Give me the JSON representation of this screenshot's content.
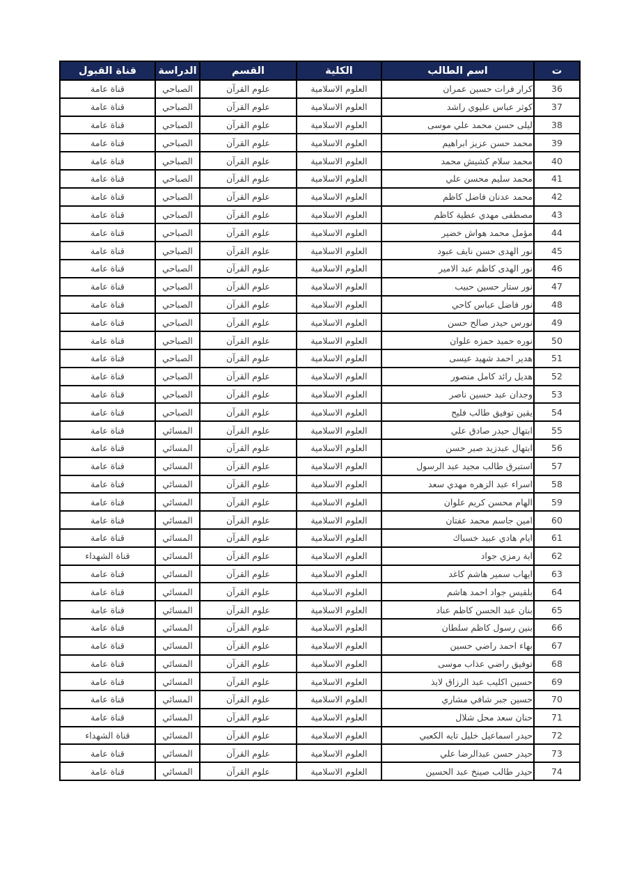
{
  "colors": {
    "header_bg": "#19285a",
    "header_text": "#ffffff",
    "border": "#000000",
    "body_text": "#3d3d3d",
    "page_bg": "#ffffff"
  },
  "table": {
    "headers": {
      "no": "ت",
      "name": "اسم الطالب",
      "college": "الكلية",
      "department": "القسم",
      "study": "الدراسة",
      "channel": "قناة القبول"
    },
    "column_keys": [
      "no",
      "name",
      "college",
      "department",
      "study",
      "channel"
    ],
    "rows": [
      {
        "no": "36",
        "name": "كرار فرات حسين عمران",
        "college": "العلوم الاسلامية",
        "department": "علوم القرآن",
        "study": "الصباحي",
        "channel": "قناة عامة"
      },
      {
        "no": "37",
        "name": "كوثر عباس عليوي راشد",
        "college": "العلوم الاسلامية",
        "department": "علوم القرآن",
        "study": "الصباحي",
        "channel": "قناة عامة"
      },
      {
        "no": "38",
        "name": "ليلى حسن محمد علي موسى",
        "college": "العلوم الاسلامية",
        "department": "علوم القرآن",
        "study": "الصباحي",
        "channel": "قناة عامة"
      },
      {
        "no": "39",
        "name": "محمد حسن عزيز ابراهيم",
        "college": "العلوم الاسلامية",
        "department": "علوم القرآن",
        "study": "الصباحي",
        "channel": "قناة عامة"
      },
      {
        "no": "40",
        "name": "محمد سلام كشيش محمد",
        "college": "العلوم الاسلامية",
        "department": "علوم القرآن",
        "study": "الصباحي",
        "channel": "قناة عامة"
      },
      {
        "no": "41",
        "name": "محمد سليم محسن علي",
        "college": "العلوم الاسلامية",
        "department": "علوم القرآن",
        "study": "الصباحي",
        "channel": "قناة عامة"
      },
      {
        "no": "42",
        "name": "محمد عدنان فاضل كاظم",
        "college": "العلوم الاسلامية",
        "department": "علوم القرآن",
        "study": "الصباحي",
        "channel": "قناة عامة"
      },
      {
        "no": "43",
        "name": "مصطفى مهدي عطية كاظم",
        "college": "العلوم الاسلامية",
        "department": "علوم القرآن",
        "study": "الصباحي",
        "channel": "قناة عامة"
      },
      {
        "no": "44",
        "name": "مؤمل محمد هواش خضير",
        "college": "العلوم الاسلامية",
        "department": "علوم القرآن",
        "study": "الصباحي",
        "channel": "قناة عامة"
      },
      {
        "no": "45",
        "name": "نور الهدى حسن نايف عبود",
        "college": "العلوم الاسلامية",
        "department": "علوم القرآن",
        "study": "الصباحي",
        "channel": "قناة عامة"
      },
      {
        "no": "46",
        "name": "نور الهدى كاظم عبد الامير",
        "college": "العلوم الاسلامية",
        "department": "علوم القرآن",
        "study": "الصباحي",
        "channel": "قناة عامة"
      },
      {
        "no": "47",
        "name": "نور ستار حسين حبيب",
        "college": "العلوم الاسلامية",
        "department": "علوم القرآن",
        "study": "الصباحي",
        "channel": "قناة عامة"
      },
      {
        "no": "48",
        "name": "نور فاضل عباس كاحي",
        "college": "العلوم الاسلامية",
        "department": "علوم القرآن",
        "study": "الصباحي",
        "channel": "قناة عامة"
      },
      {
        "no": "49",
        "name": "نورس حيدر صالح حسن",
        "college": "العلوم الاسلامية",
        "department": "علوم القرآن",
        "study": "الصباحي",
        "channel": "قناة عامة"
      },
      {
        "no": "50",
        "name": "نوره حميد حمزه علوان",
        "college": "العلوم الاسلامية",
        "department": "علوم القرآن",
        "study": "الصباحي",
        "channel": "قناة عامة"
      },
      {
        "no": "51",
        "name": "هدير احمد شهيد عيسى",
        "college": "العلوم الاسلامية",
        "department": "علوم القرآن",
        "study": "الصباحي",
        "channel": "قناة عامة"
      },
      {
        "no": "52",
        "name": "هديل رائد كامل منصور",
        "college": "العلوم الاسلامية",
        "department": "علوم القرآن",
        "study": "الصباحي",
        "channel": "قناة عامة"
      },
      {
        "no": "53",
        "name": "وجدان عبد حسين ناصر",
        "college": "العلوم الاسلامية",
        "department": "علوم القرآن",
        "study": "الصباحي",
        "channel": "قناة عامة"
      },
      {
        "no": "54",
        "name": "يقين توفيق طالب فليح",
        "college": "العلوم الاسلامية",
        "department": "علوم القرآن",
        "study": "الصباحي",
        "channel": "قناة عامة"
      },
      {
        "no": "55",
        "name": "ابتهال حيدر صادق علي",
        "college": "العلوم الاسلامية",
        "department": "علوم القرآن",
        "study": "المسائي",
        "channel": "قناة عامة"
      },
      {
        "no": "56",
        "name": "ابتهال عبدزيد صبر حسن",
        "college": "العلوم الاسلامية",
        "department": "علوم القرآن",
        "study": "المسائي",
        "channel": "قناة عامة"
      },
      {
        "no": "57",
        "name": "استبرق طالب مجيد عبد الرسول",
        "college": "العلوم الاسلامية",
        "department": "علوم القرآن",
        "study": "المسائي",
        "channel": "قناة عامة"
      },
      {
        "no": "58",
        "name": "اسراء عبد الزهره مهدي سعد",
        "college": "العلوم الاسلامية",
        "department": "علوم القرآن",
        "study": "المسائي",
        "channel": "قناة عامة"
      },
      {
        "no": "59",
        "name": "الهام محسن كريم علوان",
        "college": "العلوم الاسلامية",
        "department": "علوم القرآن",
        "study": "المسائي",
        "channel": "قناة عامة"
      },
      {
        "no": "60",
        "name": "امين جاسم محمد عفتان",
        "college": "العلوم الاسلامية",
        "department": "علوم القرآن",
        "study": "المسائي",
        "channel": "قناة عامة"
      },
      {
        "no": "61",
        "name": "ايام هادي عبيد خسباك",
        "college": "العلوم الاسلامية",
        "department": "علوم القرآن",
        "study": "المسائي",
        "channel": "قناة عامة"
      },
      {
        "no": "62",
        "name": "اية رمزي جواد",
        "college": "العلوم الاسلامية",
        "department": "علوم القرآن",
        "study": "المسائي",
        "channel": "قناة الشهداء"
      },
      {
        "no": "63",
        "name": "ايهاب سمير هاشم كاغد",
        "college": "العلوم الاسلامية",
        "department": "علوم القرآن",
        "study": "المسائي",
        "channel": "قناة عامة"
      },
      {
        "no": "64",
        "name": "بلقيس جواد احمد هاشم",
        "college": "العلوم الاسلامية",
        "department": "علوم القرآن",
        "study": "المسائي",
        "channel": "قناة عامة"
      },
      {
        "no": "65",
        "name": "بنان عبد الحسن كاظم عناد",
        "college": "العلوم الاسلامية",
        "department": "علوم القرآن",
        "study": "المسائي",
        "channel": "قناة عامة"
      },
      {
        "no": "66",
        "name": "بنين رسول كاظم سلطان",
        "college": "العلوم الاسلامية",
        "department": "علوم القرآن",
        "study": "المسائي",
        "channel": "قناة عامة"
      },
      {
        "no": "67",
        "name": "بهاء احمد راضي حسين",
        "college": "العلوم الاسلامية",
        "department": "علوم القرآن",
        "study": "المسائي",
        "channel": "قناة عامة"
      },
      {
        "no": "68",
        "name": "توفيق راضي عذاب موسى",
        "college": "العلوم الاسلامية",
        "department": "علوم القرآن",
        "study": "المسائي",
        "channel": "قناة عامة"
      },
      {
        "no": "69",
        "name": "حسين اكليب عبد الرزاق لايذ",
        "college": "العلوم الاسلامية",
        "department": "علوم القرآن",
        "study": "المسائي",
        "channel": "قناة عامة"
      },
      {
        "no": "70",
        "name": "حسين جبر شافي مشاري",
        "college": "العلوم الاسلامية",
        "department": "علوم القرآن",
        "study": "المسائي",
        "channel": "قناة عامة"
      },
      {
        "no": "71",
        "name": "حنان سعد محل شلال",
        "college": "العلوم الاسلامية",
        "department": "علوم القرآن",
        "study": "المسائي",
        "channel": "قناة عامة"
      },
      {
        "no": "72",
        "name": "حيدر اسماعيل خليل تايه الكعبي",
        "college": "العلوم الاسلامية",
        "department": "علوم القرآن",
        "study": "المسائي",
        "channel": "قناة الشهداء"
      },
      {
        "no": "73",
        "name": "حيدر حسن عبدالرضا علي",
        "college": "العلوم الاسلامية",
        "department": "علوم القرآن",
        "study": "المسائي",
        "channel": "قناة عامة"
      },
      {
        "no": "74",
        "name": "حيدر طالب صينخ عبد الحسين",
        "college": "العلوم الاسلامية",
        "department": "علوم القرآن",
        "study": "المسائي",
        "channel": "قناة عامة"
      }
    ]
  }
}
